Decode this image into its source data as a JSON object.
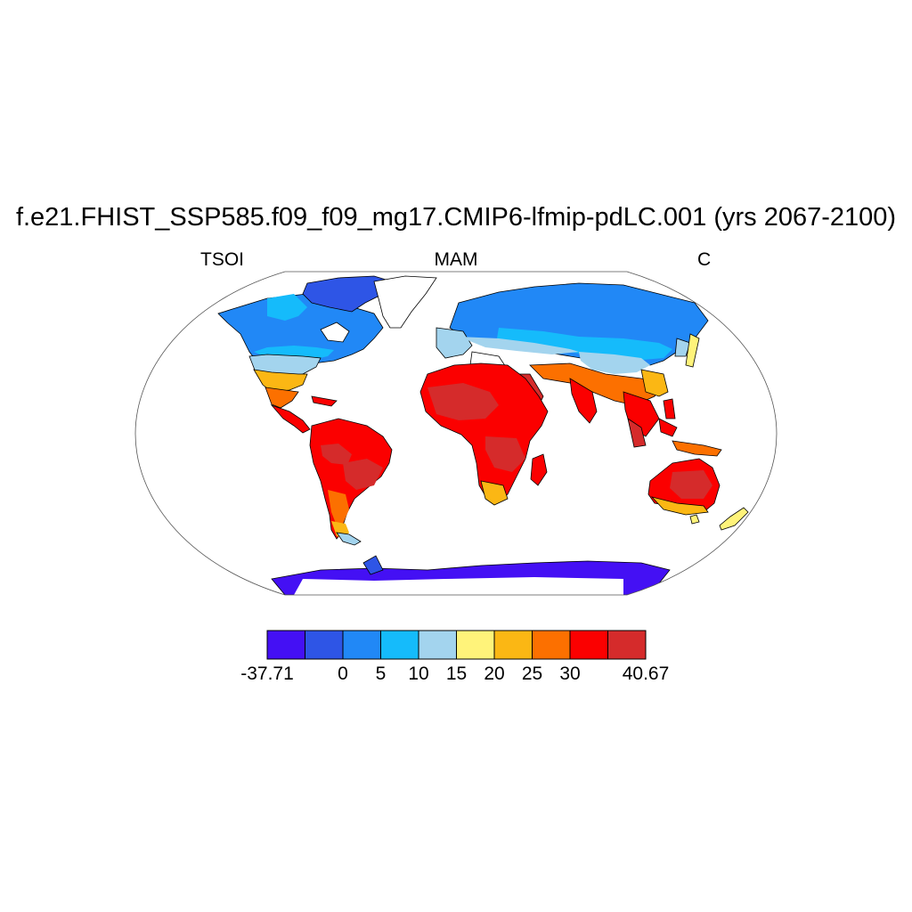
{
  "title": "f.e21.FHIST_SSP585.f09_f09_mg17.CMIP6-lfmip-pdLC.001 (yrs 2067-2100)",
  "left_label": "TSOI",
  "center_label": "MAM",
  "right_label": "C",
  "colorbar": {
    "colors": [
      "#4410f4",
      "#2e55e6",
      "#2188f6",
      "#15bbfb",
      "#a3d4ee",
      "#fff37a",
      "#fbb714",
      "#fc7000",
      "#fb0000",
      "#d52b2b"
    ],
    "labels": [
      "-37.71",
      "0",
      "5",
      "10",
      "15",
      "20",
      "25",
      "30",
      "40.67"
    ]
  },
  "map": {
    "ocean_color": "#ffffff",
    "outline_color": "#555555",
    "coastline_color": "#000000"
  }
}
